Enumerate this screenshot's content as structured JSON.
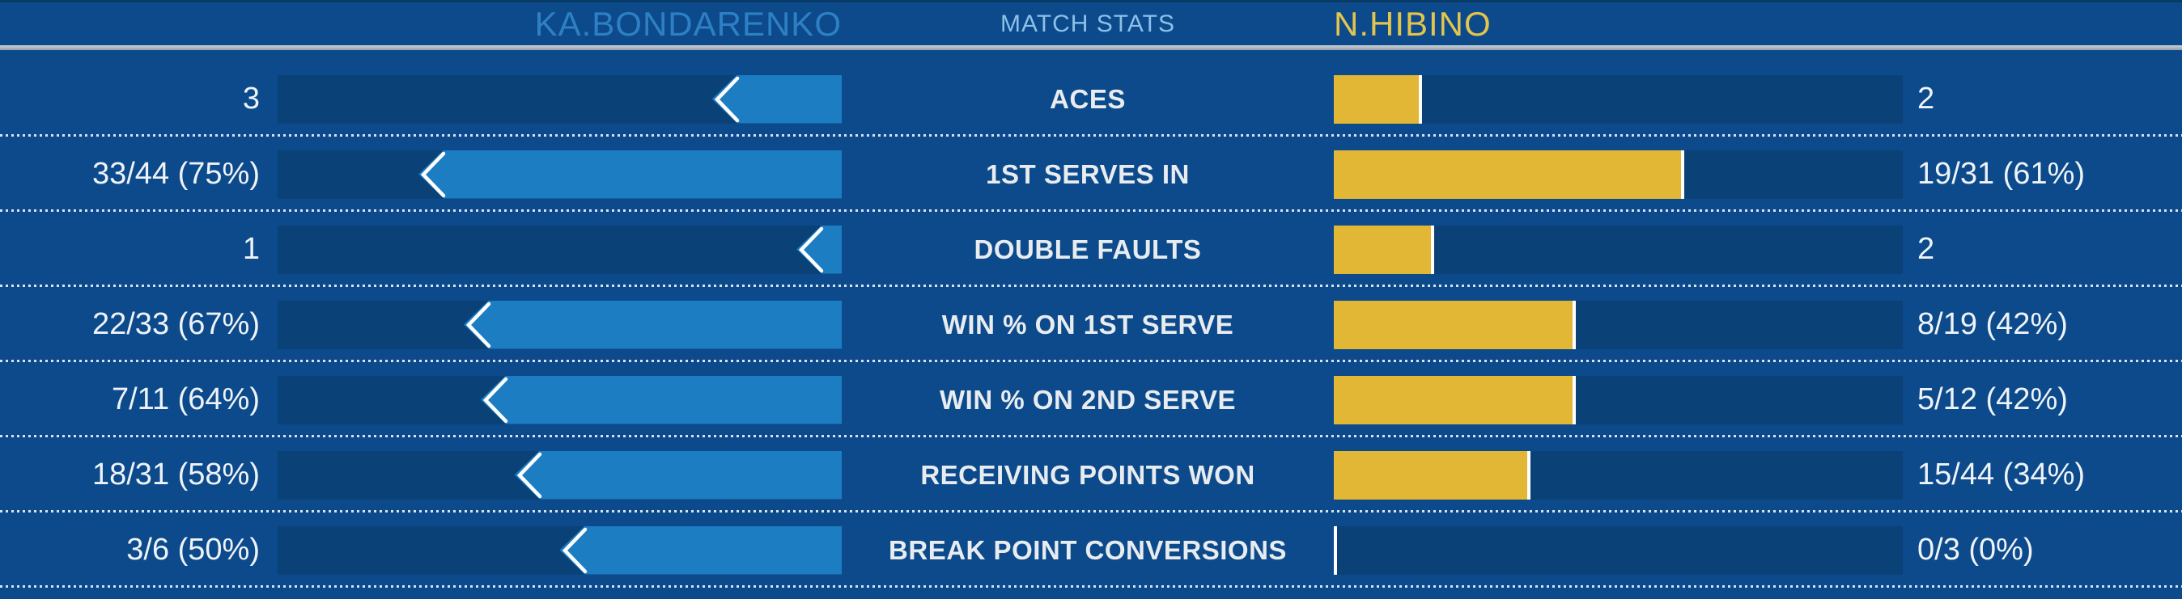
{
  "header": {
    "player_left": "KA.BONDARENKO",
    "title": "MATCH STATS",
    "player_right": "N.HIBINO"
  },
  "colors": {
    "background": "#0c4a8c",
    "track": "#0a4278",
    "left_bar": "#1d7dc2",
    "right_bar": "#e2b735",
    "marker_white": "#ffffff",
    "player_left_text": "#2e80c4",
    "title_text": "#8cc0e8",
    "player_right_text": "#e3c44c",
    "value_text": "#eef3f7",
    "header_rule": "#96a0aa",
    "dotted_separator": "#d8e4f0"
  },
  "rows": [
    {
      "label": "ACES",
      "left_text": "3",
      "left_pct": 23,
      "right_text": "2",
      "right_pct": 15
    },
    {
      "label": "1ST SERVES IN",
      "left_text": "33/44 (75%)",
      "left_pct": 75,
      "right_text": "19/31 (61%)",
      "right_pct": 61
    },
    {
      "label": "DOUBLE FAULTS",
      "left_text": "1",
      "left_pct": 8,
      "right_text": "2",
      "right_pct": 17
    },
    {
      "label": "WIN % ON 1ST SERVE",
      "left_text": "22/33 (67%)",
      "left_pct": 67,
      "right_text": "8/19 (42%)",
      "right_pct": 42
    },
    {
      "label": "WIN % ON 2ND SERVE",
      "left_text": "7/11 (64%)",
      "left_pct": 64,
      "right_text": "5/12 (42%)",
      "right_pct": 42
    },
    {
      "label": "RECEIVING POINTS WON",
      "left_text": "18/31 (58%)",
      "left_pct": 58,
      "right_text": "15/44 (34%)",
      "right_pct": 34
    },
    {
      "label": "BREAK POINT CONVERSIONS",
      "left_text": "3/6 (50%)",
      "left_pct": 50,
      "right_text": "0/3 (0%)",
      "right_pct": 0
    }
  ],
  "chart_data": {
    "type": "bar",
    "title": "MATCH STATS",
    "layout": "mirrored horizontal bars; left player bars grow right-to-left with arrow tip, right player bars grow left-to-right with white end marker; stat labels centered",
    "legend_position": "header (player names above each bar column)",
    "grid": false,
    "categories": [
      "ACES",
      "1ST SERVES IN",
      "DOUBLE FAULTS",
      "WIN % ON 1ST SERVE",
      "WIN % ON 2ND SERVE",
      "RECEIVING POINTS WON",
      "BREAK POINT CONVERSIONS"
    ],
    "series": [
      {
        "name": "KA.BONDARENKO",
        "side": "left",
        "color": "#1d7dc2",
        "values_display": [
          "3",
          "33/44 (75%)",
          "1",
          "22/33 (67%)",
          "7/11 (64%)",
          "18/31 (58%)",
          "3/6 (50%)"
        ],
        "made": [
          3,
          33,
          1,
          22,
          7,
          18,
          3
        ],
        "attempts": [
          null,
          44,
          null,
          33,
          11,
          31,
          6
        ],
        "pct": [
          null,
          75,
          null,
          67,
          64,
          58,
          50
        ],
        "bar_pct_of_track": [
          23,
          75,
          8,
          67,
          64,
          58,
          50
        ]
      },
      {
        "name": "N.HIBINO",
        "side": "right",
        "color": "#e2b735",
        "values_display": [
          "2",
          "19/31 (61%)",
          "2",
          "8/19 (42%)",
          "5/12 (42%)",
          "15/44 (34%)",
          "0/3 (0%)"
        ],
        "made": [
          2,
          19,
          2,
          8,
          5,
          15,
          0
        ],
        "attempts": [
          null,
          31,
          null,
          19,
          12,
          44,
          3
        ],
        "pct": [
          null,
          61,
          null,
          42,
          42,
          34,
          0
        ],
        "bar_pct_of_track": [
          15,
          61,
          17,
          42,
          42,
          34,
          0
        ]
      }
    ]
  }
}
